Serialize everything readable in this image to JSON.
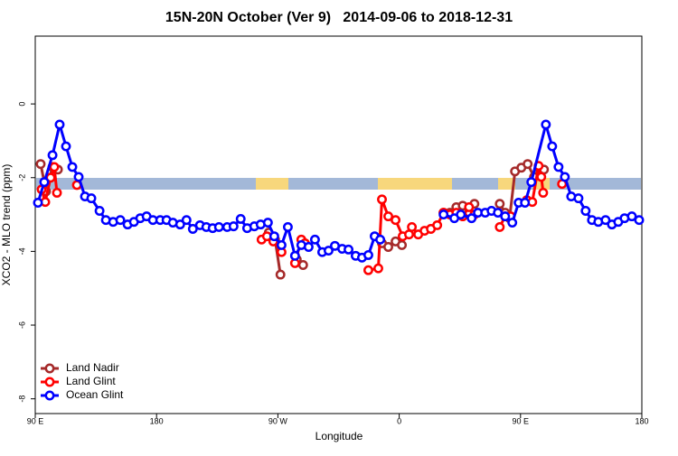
{
  "chart_data": {
    "type": "line",
    "title": "15N-20N October (Ver 9)   2014-09-06 to 2018-12-31",
    "x_label": "Longitude",
    "y_label": "XCO2 - MLO trend (ppm)",
    "xlim": [
      90,
      540
    ],
    "ylim": [
      -8.4,
      1.84
    ],
    "xticks": [
      {
        "value": 90,
        "label": "90 E"
      },
      180,
      {
        "value": 270,
        "label": "90 W"
      },
      {
        "value": 360,
        "label": "0"
      },
      {
        "value": 450,
        "label": "90 E"
      },
      {
        "value": 540,
        "label": "180"
      }
    ],
    "yticks": [
      0,
      -2,
      -4,
      -6,
      -8
    ],
    "legend": "bottom-left",
    "series": [
      {
        "name": "Land Nadir",
        "color": "#a52a2a",
        "x": [
          94.0,
          98.0,
          102.8,
          106.8,
          null,
          263.2,
          267.9,
          271.9,
          null,
          284.0,
          288.7,
          null,
          347.2,
          351.9,
          357.3,
          362.0,
          null,
          392.9,
          397.6,
          402.4,
          407.1,
          411.8,
          415.8,
          null,
          434.6,
          438.6,
          441.9,
          445.9,
          450.6,
          455.3,
          460.0,
          464.7,
          467.4
        ],
        "values": [
          -1.63,
          -2.37,
          -1.71,
          -1.78,
          null,
          -3.49,
          -3.68,
          -4.63,
          null,
          -4.22,
          -4.37,
          null,
          -3.78,
          -3.88,
          -3.73,
          -3.83,
          null,
          -2.95,
          -2.95,
          -2.8,
          -2.76,
          -2.95,
          -2.71,
          null,
          -2.71,
          -2.95,
          -3.1,
          -1.83,
          -1.73,
          -1.63,
          -1.98,
          -1.83,
          -1.78
        ]
      },
      {
        "name": "Land Glint",
        "color": "#ff0000",
        "x": [
          94.7,
          97.4,
          101.4,
          104.1,
          106.1,
          null,
          120.9,
          null,
          257.9,
          261.9,
          266.6,
          272.7,
          null,
          282.7,
          287.4,
          290.1,
          null,
          337.1,
          344.5,
          347.2,
          351.9,
          357.3,
          362.6,
          367.3,
          369.4,
          374.1,
          378.8,
          383.5,
          388.2,
          392.9,
          397.6,
          402.4,
          407.1,
          411.8,
          415.8,
          null,
          434.6,
          438.6,
          442.7,
          null,
          454.7,
          458.7,
          463.4,
          465.4,
          466.8,
          null,
          480.8
        ],
        "values": [
          -2.32,
          -2.66,
          -2.0,
          -1.71,
          -2.41,
          null,
          -2.2,
          null,
          -3.68,
          -3.59,
          -3.73,
          -4.02,
          null,
          -4.32,
          -3.68,
          -3.78,
          null,
          -4.51,
          -4.46,
          -2.59,
          -3.05,
          -3.15,
          -3.59,
          -3.54,
          -3.34,
          -3.54,
          -3.44,
          -3.39,
          -3.29,
          -2.95,
          -3.0,
          -2.95,
          -3.05,
          -2.8,
          -3.0,
          null,
          -3.34,
          -3.05,
          -3.05,
          null,
          -2.61,
          -2.66,
          -1.68,
          -1.98,
          -2.41,
          null,
          -2.17
        ]
      },
      {
        "name": "Ocean Glint",
        "color": "#0000ff",
        "x": [
          92.0,
          96.7,
          102.8,
          108.1,
          112.8,
          117.5,
          122.2,
          126.9,
          131.6,
          137.7,
          142.4,
          147.8,
          153.1,
          158.5,
          163.2,
          167.9,
          172.6,
          177.3,
          182.7,
          187.4,
          192.1,
          197.5,
          202.2,
          206.9,
          212.2,
          216.9,
          221.6,
          226.3,
          232.4,
          237.1,
          242.4,
          247.2,
          252.5,
          257.2,
          262.6,
          267.3,
          272.7,
          277.4,
          282.7,
          287.4,
          292.8,
          297.5,
          302.9,
          307.6,
          312.3,
          317.7,
          322.4,
          327.7,
          332.4,
          337.1,
          341.8,
          345.9,
          null,
          392.9,
          400.9,
          405.7,
          413.7,
          418.4,
          423.8,
          428.5,
          433.2,
          438.6,
          443.9,
          448.6,
          453.3,
          458.0,
          468.8,
          473.5,
          478.2,
          482.9,
          487.6,
          493.0,
          498.3,
          503.0,
          507.7,
          513.1,
          517.8,
          522.5,
          527.2,
          532.6,
          538.0
        ],
        "values": [
          -2.68,
          -2.12,
          -1.39,
          -0.56,
          -1.15,
          -1.71,
          -1.98,
          -2.51,
          -2.56,
          -2.9,
          -3.15,
          -3.2,
          -3.15,
          -3.27,
          -3.2,
          -3.1,
          -3.05,
          -3.15,
          -3.15,
          -3.15,
          -3.22,
          -3.27,
          -3.15,
          -3.39,
          -3.29,
          -3.34,
          -3.37,
          -3.34,
          -3.34,
          -3.32,
          -3.12,
          -3.37,
          -3.32,
          -3.27,
          -3.22,
          -3.59,
          -3.83,
          -3.34,
          -4.12,
          -3.83,
          -3.88,
          -3.68,
          -4.02,
          -3.98,
          -3.85,
          -3.93,
          -3.95,
          -4.12,
          -4.17,
          -4.1,
          -3.59,
          -3.68,
          null,
          -3.0,
          -3.1,
          -3.0,
          -3.1,
          -2.95,
          -2.95,
          -2.9,
          -2.95,
          -3.05,
          -3.22,
          -2.68,
          -2.68,
          -2.12,
          -0.56,
          -1.15,
          -1.71,
          -1.98,
          -2.51,
          -2.56,
          -2.9,
          -3.15,
          -3.2,
          -3.15,
          -3.27,
          -3.2,
          -3.1,
          -3.05,
          -3.15
        ]
      }
    ]
  }
}
